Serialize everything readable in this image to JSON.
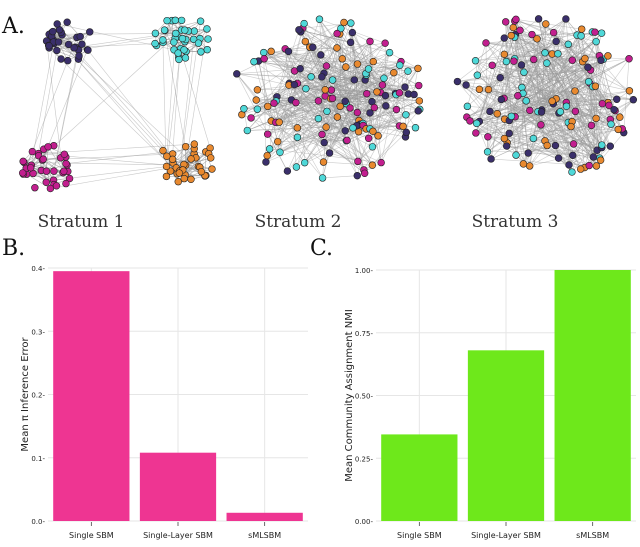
{
  "panels": {
    "a_label": "A.",
    "b_label": "B.",
    "c_label": "C."
  },
  "strata": [
    {
      "label": "Stratum 1"
    },
    {
      "label": "Stratum 2"
    },
    {
      "label": "Stratum 3"
    }
  ],
  "colors": {
    "navy": "#3a2f6b",
    "cyan": "#4fd8d8",
    "magenta": "#c21f8f",
    "orange": "#e8892f",
    "edge": "#9a9a9a",
    "bar_b": "#ee3592",
    "bar_c": "#6ee81b"
  },
  "chart_data": [
    {
      "type": "bar",
      "panel": "B",
      "categories": [
        "Single SBM",
        "Single-Layer SBM",
        "sMLSBM"
      ],
      "values": [
        0.395,
        0.108,
        0.013
      ],
      "ylabel": "Mean π Inference Error",
      "ylim": [
        0,
        0.4
      ],
      "yticks": [
        0.0,
        0.1,
        0.2,
        0.3,
        0.4
      ],
      "ytick_labels": [
        "0.0-",
        "0.1-",
        "0.2-",
        "0.3-",
        "0.4-"
      ]
    },
    {
      "type": "bar",
      "panel": "C",
      "categories": [
        "Single SBM",
        "Single-Layer SBM",
        "sMLSBM"
      ],
      "values": [
        0.345,
        0.68,
        1.0
      ],
      "ylabel": "Mean Community Assignment NMI",
      "ylim": [
        0,
        1.0
      ],
      "yticks": [
        0.0,
        0.25,
        0.5,
        0.75,
        1.0
      ],
      "ytick_labels": [
        "0.00-",
        "0.25-",
        "0.50-",
        "0.75-",
        "1.00-"
      ]
    }
  ]
}
